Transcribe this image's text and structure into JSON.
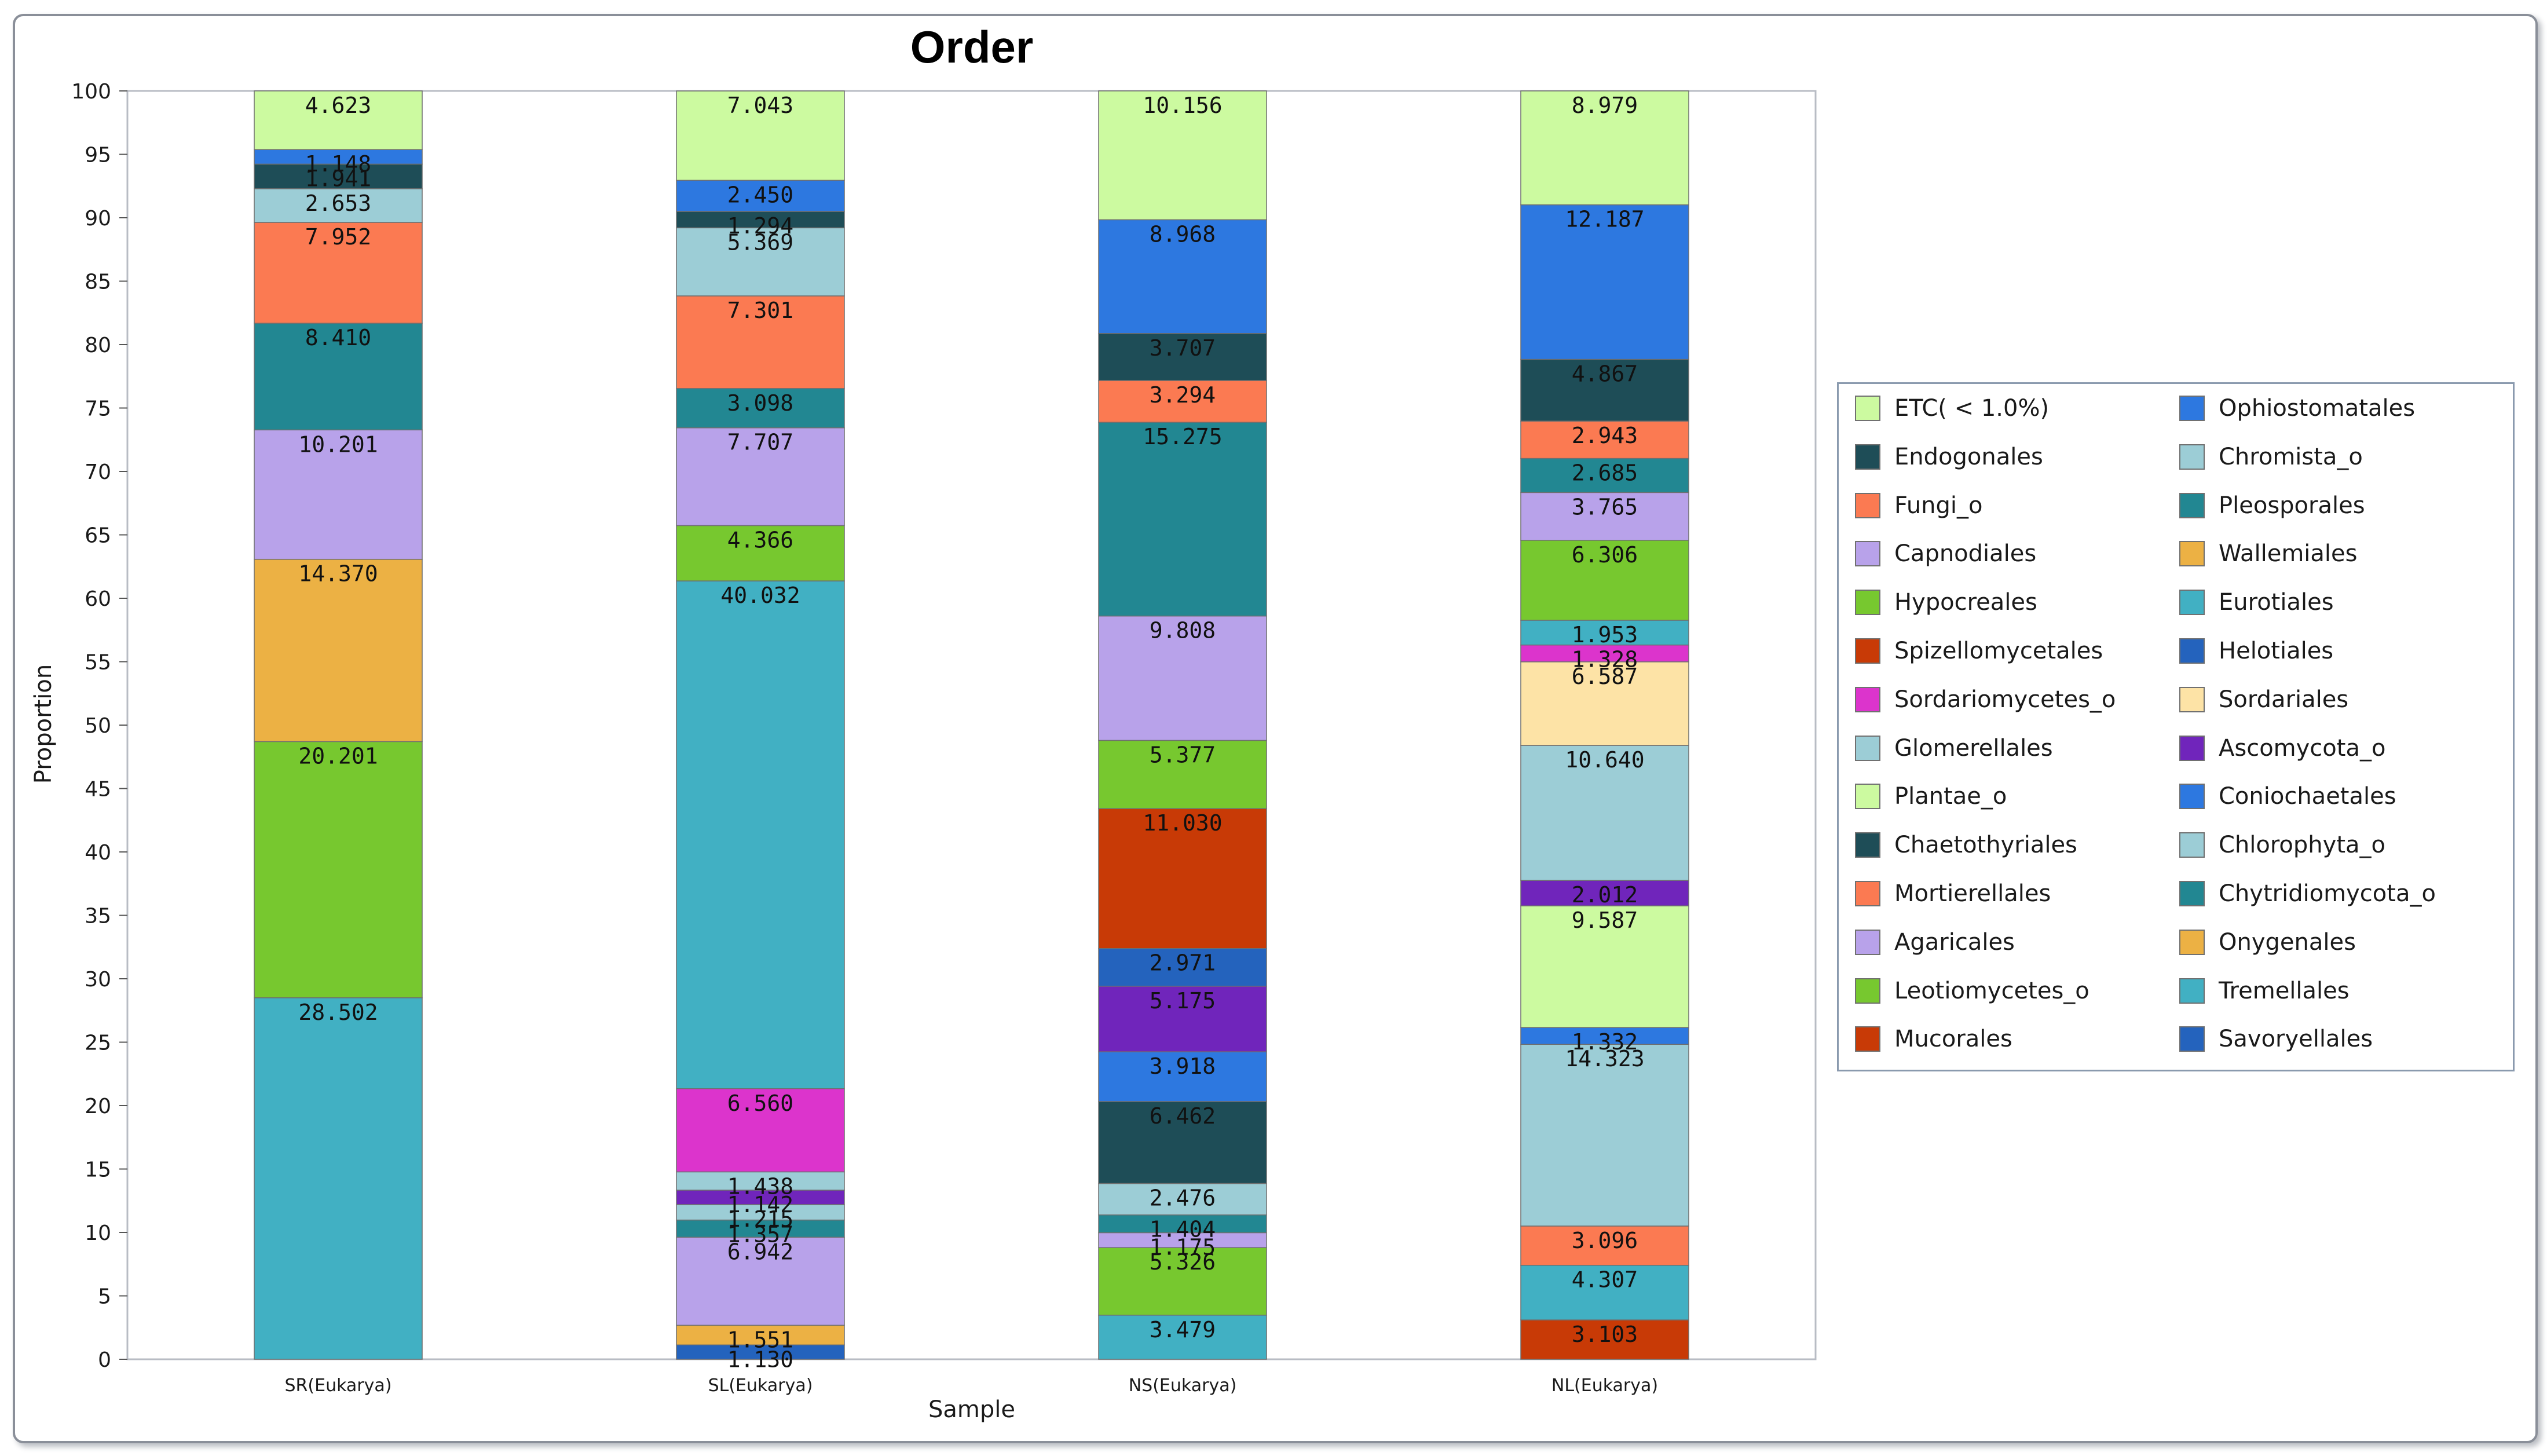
{
  "chart_data": {
    "type": "bar",
    "stacked": true,
    "title": "Order",
    "xlabel": "Sample",
    "ylabel": "Proportion",
    "ylim": [
      0,
      100
    ],
    "yticks": [
      0,
      5,
      10,
      15,
      20,
      25,
      30,
      35,
      40,
      45,
      50,
      55,
      60,
      65,
      70,
      75,
      80,
      85,
      90,
      95,
      100
    ],
    "categories": [
      "SR(Eukarya)",
      "SL(Eukarya)",
      "NS(Eukarya)",
      "NL(Eukarya)"
    ],
    "legend_position": "right",
    "colors": {
      "light_green": "#ccfaa0",
      "dark_teal": "#1e4d57",
      "salmon": "#fb7a52",
      "lavender": "#b8a2ea",
      "green": "#77c82f",
      "rust": "#c83a06",
      "magenta": "#dc34cc",
      "light_blue_gray": "#9ccdd6",
      "blue": "#2d78e0",
      "teal": "#228792",
      "gold": "#ecb144",
      "cyan": "#41b0c3",
      "navy_blue": "#2463bd",
      "wheat": "#fde3a6",
      "purple": "#7025bb"
    },
    "legend": [
      {
        "name": "ETC( < 1.0%)",
        "color": "#ccfaa0"
      },
      {
        "name": "Ophiostomatales",
        "color": "#2d78e0"
      },
      {
        "name": "Endogonales",
        "color": "#1e4d57"
      },
      {
        "name": "Chromista_o",
        "color": "#9ccdd6"
      },
      {
        "name": "Fungi_o",
        "color": "#fb7a52"
      },
      {
        "name": "Pleosporales",
        "color": "#228792"
      },
      {
        "name": "Capnodiales",
        "color": "#b8a2ea"
      },
      {
        "name": "Wallemiales",
        "color": "#ecb144"
      },
      {
        "name": "Hypocreales",
        "color": "#77c82f"
      },
      {
        "name": "Eurotiales",
        "color": "#41b0c3"
      },
      {
        "name": "Spizellomycetales",
        "color": "#c83a06"
      },
      {
        "name": "Helotiales",
        "color": "#2463bd"
      },
      {
        "name": "Sordariomycetes_o",
        "color": "#dc34cc"
      },
      {
        "name": "Sordariales",
        "color": "#fde3a6"
      },
      {
        "name": "Glomerellales",
        "color": "#9ccdd6"
      },
      {
        "name": "Ascomycota_o",
        "color": "#7025bb"
      },
      {
        "name": "Plantae_o",
        "color": "#ccfaa0"
      },
      {
        "name": "Coniochaetales",
        "color": "#2d78e0"
      },
      {
        "name": "Chaetothyriales",
        "color": "#1e4d57"
      },
      {
        "name": "Chlorophyta_o",
        "color": "#9ccdd6"
      },
      {
        "name": "Mortierellales",
        "color": "#fb7a52"
      },
      {
        "name": "Chytridiomycota_o",
        "color": "#228792"
      },
      {
        "name": "Agaricales",
        "color": "#b8a2ea"
      },
      {
        "name": "Onygenales",
        "color": "#ecb144"
      },
      {
        "name": "Leotiomycetes_o",
        "color": "#77c82f"
      },
      {
        "name": "Tremellales",
        "color": "#41b0c3"
      },
      {
        "name": "Mucorales",
        "color": "#c83a06"
      },
      {
        "name": "Savoryellales",
        "color": "#2463bd"
      }
    ],
    "stacks": [
      {
        "category": "SR(Eukarya)",
        "segments": [
          {
            "value": 28.502,
            "label": "28.502",
            "color": "#41b0c3"
          },
          {
            "value": 20.201,
            "label": "20.201",
            "color": "#77c82f"
          },
          {
            "value": 14.37,
            "label": "14.370",
            "color": "#ecb144"
          },
          {
            "value": 10.201,
            "label": "10.201",
            "color": "#b8a2ea"
          },
          {
            "value": 8.41,
            "label": "8.410",
            "color": "#228792"
          },
          {
            "value": 7.952,
            "label": "7.952",
            "color": "#fb7a52"
          },
          {
            "value": 2.653,
            "label": "2.653",
            "color": "#9ccdd6"
          },
          {
            "value": 1.941,
            "label": "1.941",
            "color": "#1e4d57"
          },
          {
            "value": 1.148,
            "label": "1.148",
            "color": "#2d78e0"
          },
          {
            "value": 4.623,
            "label": "4.623",
            "color": "#ccfaa0"
          }
        ]
      },
      {
        "category": "SL(Eukarya)",
        "segments": [
          {
            "value": 1.13,
            "label": "1.130",
            "color": "#2463bd"
          },
          {
            "value": 1.551,
            "label": "1.551",
            "color": "#ecb144"
          },
          {
            "value": 6.942,
            "label": "6.942",
            "color": "#b8a2ea"
          },
          {
            "value": 1.357,
            "label": "1.357",
            "color": "#228792"
          },
          {
            "value": 1.215,
            "label": "1.215",
            "color": "#9ccdd6"
          },
          {
            "value": 1.142,
            "label": "1.142",
            "color": "#7025bb"
          },
          {
            "value": 1.438,
            "label": "1.438",
            "color": "#9ccdd6"
          },
          {
            "value": 6.56,
            "label": "6.560",
            "color": "#dc34cc"
          },
          {
            "value": 40.032,
            "label": "40.032",
            "color": "#41b0c3"
          },
          {
            "value": 4.366,
            "label": "4.366",
            "color": "#77c82f"
          },
          {
            "value": 7.707,
            "label": "7.707",
            "color": "#b8a2ea"
          },
          {
            "value": 3.098,
            "label": "3.098",
            "color": "#228792"
          },
          {
            "value": 7.301,
            "label": "7.301",
            "color": "#fb7a52"
          },
          {
            "value": 5.369,
            "label": "5.369",
            "color": "#9ccdd6"
          },
          {
            "value": 1.294,
            "label": "1.294",
            "color": "#1e4d57"
          },
          {
            "value": 2.45,
            "label": "2.450",
            "color": "#2d78e0"
          },
          {
            "value": 7.043,
            "label": "7.043",
            "color": "#ccfaa0"
          }
        ]
      },
      {
        "category": "NS(Eukarya)",
        "segments": [
          {
            "value": 3.479,
            "label": "3.479",
            "color": "#41b0c3"
          },
          {
            "value": 5.326,
            "label": "5.326",
            "color": "#77c82f"
          },
          {
            "value": 1.175,
            "label": "1.175",
            "color": "#b8a2ea"
          },
          {
            "value": 1.404,
            "label": "1.404",
            "color": "#228792"
          },
          {
            "value": 2.476,
            "label": "2.476",
            "color": "#9ccdd6"
          },
          {
            "value": 6.462,
            "label": "6.462",
            "color": "#1e4d57"
          },
          {
            "value": 3.918,
            "label": "3.918",
            "color": "#2d78e0"
          },
          {
            "value": 5.175,
            "label": "5.175",
            "color": "#7025bb"
          },
          {
            "value": 2.971,
            "label": "2.971",
            "color": "#2463bd"
          },
          {
            "value": 11.03,
            "label": "11.030",
            "color": "#c83a06"
          },
          {
            "value": 5.377,
            "label": "5.377",
            "color": "#77c82f"
          },
          {
            "value": 9.808,
            "label": "9.808",
            "color": "#b8a2ea"
          },
          {
            "value": 15.275,
            "label": "15.275",
            "color": "#228792"
          },
          {
            "value": 3.294,
            "label": "3.294",
            "color": "#fb7a52"
          },
          {
            "value": 3.707,
            "label": "3.707",
            "color": "#1e4d57"
          },
          {
            "value": 8.968,
            "label": "8.968",
            "color": "#2d78e0"
          },
          {
            "value": 10.156,
            "label": "10.156",
            "color": "#ccfaa0"
          }
        ]
      },
      {
        "category": "NL(Eukarya)",
        "segments": [
          {
            "value": 3.103,
            "label": "3.103",
            "color": "#c83a06"
          },
          {
            "value": 4.307,
            "label": "4.307",
            "color": "#41b0c3"
          },
          {
            "value": 3.096,
            "label": "3.096",
            "color": "#fb7a52"
          },
          {
            "value": 14.323,
            "label": "14.323",
            "color": "#9ccdd6"
          },
          {
            "value": 1.332,
            "label": "1.332",
            "color": "#2d78e0"
          },
          {
            "value": 9.587,
            "label": "9.587",
            "color": "#ccfaa0"
          },
          {
            "value": 2.012,
            "label": "2.012",
            "color": "#7025bb"
          },
          {
            "value": 10.64,
            "label": "10.640",
            "color": "#9ccdd6"
          },
          {
            "value": 6.587,
            "label": "6.587",
            "color": "#fde3a6"
          },
          {
            "value": 1.328,
            "label": "1.328",
            "color": "#dc34cc"
          },
          {
            "value": 1.953,
            "label": "1.953",
            "color": "#41b0c3"
          },
          {
            "value": 6.306,
            "label": "6.306",
            "color": "#77c82f"
          },
          {
            "value": 3.765,
            "label": "3.765",
            "color": "#b8a2ea"
          },
          {
            "value": 2.685,
            "label": "2.685",
            "color": "#228792"
          },
          {
            "value": 2.943,
            "label": "2.943",
            "color": "#fb7a52"
          },
          {
            "value": 4.867,
            "label": "4.867",
            "color": "#1e4d57"
          },
          {
            "value": 12.187,
            "label": "12.187",
            "color": "#2d78e0"
          },
          {
            "value": 8.979,
            "label": "8.979",
            "color": "#ccfaa0"
          }
        ]
      }
    ]
  }
}
